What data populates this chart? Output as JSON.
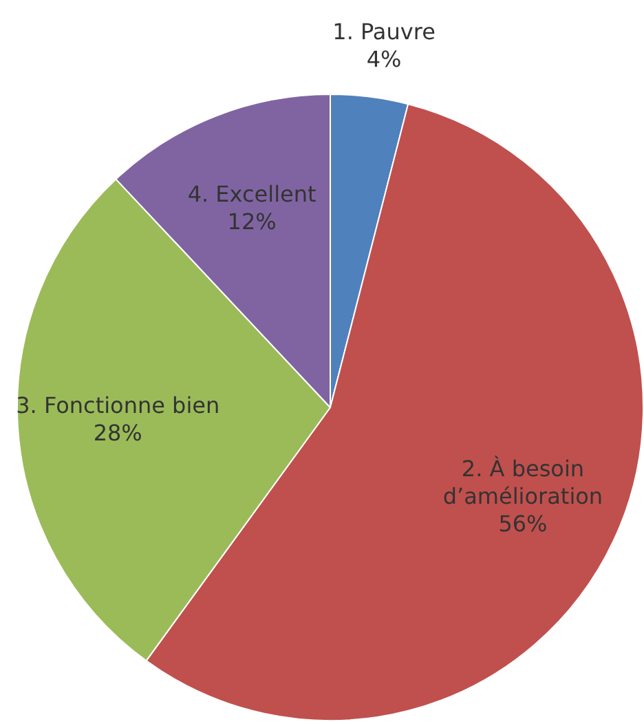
{
  "chart_data": {
    "type": "pie",
    "categories": [
      "1. Pauvre",
      "2. À besoin d’amélioration",
      "3. Fonctionne bien",
      "4. Excellent"
    ],
    "values": [
      4,
      56,
      28,
      12
    ],
    "colors": [
      "#4f81bd",
      "#c0504d",
      "#9bbb59",
      "#8064a2"
    ],
    "value_labels": [
      "4%",
      "56%",
      "28%",
      "12%"
    ],
    "legend": false
  }
}
